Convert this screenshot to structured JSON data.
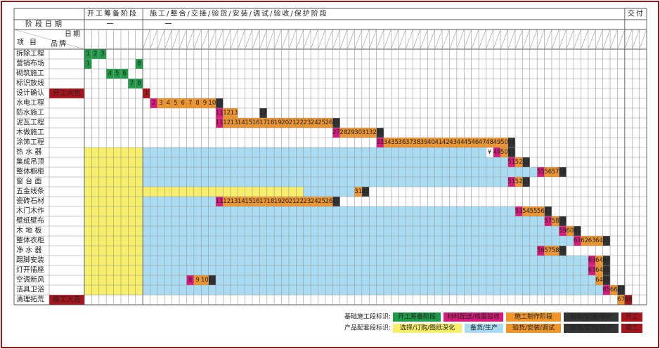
{
  "header": {
    "stage1": "开工筹备阶段",
    "stage2": "施工/整合/交接/验货/安装/调试/验收/保护阶段",
    "stage3": "交付",
    "date_row_label": "阶段日期",
    "stage1_date": "一",
    "stage2_date": "一",
    "corner_date": "日期",
    "corner_item": "项目",
    "corner_brand": "品牌"
  },
  "rows": [
    {
      "item": "拆除工程",
      "cells": [
        {
          "label": "1",
          "color": "#1e9a48"
        },
        {
          "label": "2",
          "color": "#1e9a48"
        },
        {
          "label": "3",
          "color": "#1e9a48"
        }
      ]
    },
    {
      "item": "营销布场",
      "cells": [
        {
          "label": "1",
          "color": "#1e9a48"
        },
        {
          "label": "8",
          "color": "#1e9a48"
        }
      ]
    },
    {
      "item": "砌筑施工",
      "cells": [
        {
          "label": "4",
          "color": "#1e9a48"
        },
        {
          "label": "5",
          "color": "#1e9a48"
        },
        {
          "label": "6",
          "color": "#1e9a48"
        }
      ]
    },
    {
      "item": "标识放线",
      "cells": [
        {
          "label": "7",
          "color": "#1e9a48"
        },
        {
          "label": "8",
          "color": "#1e9a48"
        }
      ]
    },
    {
      "item": "设计确认",
      "brand": "开工大吉",
      "cells": [
        {
          "label": "1",
          "color": "#a8141c"
        }
      ]
    },
    {
      "item": "水电工程",
      "cells": [
        {
          "label": "2",
          "color": "#d81b7a"
        },
        {
          "label": "3",
          "color": "#f0952a"
        },
        {
          "label": "4",
          "color": "#f0952a"
        },
        {
          "label": "5",
          "color": "#f0952a"
        },
        {
          "label": "6",
          "color": "#f0952a"
        },
        {
          "label": "7",
          "color": "#f0952a"
        },
        {
          "label": "8",
          "color": "#f0952a"
        },
        {
          "label": "9",
          "color": "#f0952a"
        },
        {
          "label": "10",
          "color": "#f0952a"
        },
        {
          "label": "11",
          "color": "#333333"
        }
      ]
    },
    {
      "item": "防水施工",
      "cells": [
        {
          "label": "11",
          "color": "#d81b7a"
        },
        {
          "label": "12",
          "color": "#f0952a"
        },
        {
          "label": "13",
          "color": "#f0952a"
        },
        {
          "label": "17",
          "color": "#333333"
        }
      ]
    },
    {
      "item": "泥瓦工程",
      "cells": [
        {
          "label": "11",
          "color": "#d81b7a"
        },
        {
          "label": "12",
          "color": "#f0952a"
        },
        {
          "label": "13",
          "color": "#f0952a"
        },
        {
          "label": "14",
          "color": "#f0952a"
        },
        {
          "label": "15",
          "color": "#f0952a"
        },
        {
          "label": "16",
          "color": "#f0952a"
        },
        {
          "label": "17",
          "color": "#f0952a"
        },
        {
          "label": "18",
          "color": "#f0952a"
        },
        {
          "label": "19",
          "color": "#f0952a"
        },
        {
          "label": "20",
          "color": "#f0952a"
        },
        {
          "label": "21",
          "color": "#f0952a"
        },
        {
          "label": "22",
          "color": "#f0952a"
        },
        {
          "label": "23",
          "color": "#f0952a"
        },
        {
          "label": "24",
          "color": "#f0952a"
        },
        {
          "label": "25",
          "color": "#f0952a"
        },
        {
          "label": "26",
          "color": "#f0952a"
        },
        {
          "label": "27",
          "color": "#333333"
        }
      ]
    },
    {
      "item": "木做施工",
      "cells": [
        {
          "label": "27",
          "color": "#d81b7a"
        },
        {
          "label": "28",
          "color": "#f0952a"
        },
        {
          "label": "29",
          "color": "#f0952a"
        },
        {
          "label": "30",
          "color": "#f0952a"
        },
        {
          "label": "31",
          "color": "#f0952a"
        },
        {
          "label": "32",
          "color": "#f0952a"
        },
        {
          "label": "33",
          "color": "#333333"
        }
      ]
    },
    {
      "item": "涂饰工程",
      "cells": [
        {
          "label": "33",
          "color": "#d81b7a"
        },
        {
          "label": "34",
          "color": "#f0952a"
        },
        {
          "label": "35",
          "color": "#f0952a"
        },
        {
          "label": "36",
          "color": "#f0952a"
        },
        {
          "label": "37",
          "color": "#f0952a"
        },
        {
          "label": "38",
          "color": "#f0952a"
        },
        {
          "label": "39",
          "color": "#f0952a"
        },
        {
          "label": "40",
          "color": "#f0952a"
        },
        {
          "label": "41",
          "color": "#f0952a"
        },
        {
          "label": "42",
          "color": "#f0952a"
        },
        {
          "label": "43",
          "color": "#f0952a"
        },
        {
          "label": "44",
          "color": "#f0952a"
        },
        {
          "label": "45",
          "color": "#f0952a"
        },
        {
          "label": "46",
          "color": "#f0952a"
        },
        {
          "label": "47",
          "color": "#f0952a"
        },
        {
          "label": "48",
          "color": "#f0952a"
        },
        {
          "label": "49",
          "color": "#f0952a"
        },
        {
          "label": "50",
          "color": "#f0952a"
        },
        {
          "label": "51",
          "color": "#333333"
        }
      ]
    },
    {
      "item": "热 水 器",
      "cells": [
        {
          "label": "¥"
        },
        {
          "label": "49",
          "color": "#d81b7a"
        },
        {
          "label": "50",
          "color": "#f0952a"
        },
        {
          "label": "51",
          "color": "#333333"
        }
      ]
    },
    {
      "item": "集成吊顶",
      "cells": [
        {
          "label": "51",
          "color": "#d81b7a"
        },
        {
          "label": "52",
          "color": "#f0952a"
        },
        {
          "label": "53",
          "color": "#333333"
        }
      ]
    },
    {
      "item": "整体橱柜",
      "cells": [
        {
          "label": "55",
          "color": "#d81b7a"
        },
        {
          "label": "56",
          "color": "#f0952a"
        },
        {
          "label": "57",
          "color": "#f0952a"
        },
        {
          "label": "58",
          "color": "#333333"
        }
      ]
    },
    {
      "item": "窗 台 面",
      "cells": [
        {
          "label": "51",
          "color": "#d81b7a"
        },
        {
          "label": "52",
          "color": "#f0952a"
        },
        {
          "label": "53",
          "color": "#333333"
        }
      ]
    },
    {
      "item": "五金线条",
      "cells": [
        {
          "label": "31",
          "color": "#f0952a"
        },
        {
          "label": "32",
          "color": "#333333"
        }
      ]
    },
    {
      "item": "瓷砖石材",
      "cells": [
        {
          "label": "11",
          "color": "#d81b7a"
        },
        {
          "label": "12",
          "color": "#f0952a"
        },
        {
          "label": "13",
          "color": "#f0952a"
        },
        {
          "label": "14",
          "color": "#f0952a"
        },
        {
          "label": "15",
          "color": "#f0952a"
        },
        {
          "label": "16",
          "color": "#f0952a"
        },
        {
          "label": "17",
          "color": "#f0952a"
        },
        {
          "label": "18",
          "color": "#f0952a"
        },
        {
          "label": "19",
          "color": "#f0952a"
        },
        {
          "label": "20",
          "color": "#f0952a"
        },
        {
          "label": "21",
          "color": "#f0952a"
        },
        {
          "label": "22",
          "color": "#f0952a"
        },
        {
          "label": "23",
          "color": "#f0952a"
        },
        {
          "label": "24",
          "color": "#f0952a"
        },
        {
          "label": "25",
          "color": "#f0952a"
        },
        {
          "label": "26",
          "color": "#f0952a"
        },
        {
          "label": "27",
          "color": "#333333"
        }
      ]
    },
    {
      "item": "木门木作",
      "cells": [
        {
          "label": "53",
          "color": "#d81b7a"
        },
        {
          "label": "54",
          "color": "#f0952a"
        },
        {
          "label": "55",
          "color": "#f0952a"
        },
        {
          "label": "56",
          "color": "#f0952a"
        },
        {
          "label": "57",
          "color": "#333333"
        }
      ]
    },
    {
      "item": "壁纸壁布",
      "cells": [
        {
          "label": "57",
          "color": "#d81b7a"
        },
        {
          "label": "58",
          "color": "#f0952a"
        },
        {
          "label": "59",
          "color": "#333333"
        }
      ]
    },
    {
      "item": "木 地 板",
      "cells": [
        {
          "label": "59",
          "color": "#d81b7a"
        },
        {
          "label": "60",
          "color": "#f0952a"
        },
        {
          "label": "61",
          "color": "#333333"
        }
      ]
    },
    {
      "item": "整体衣柜",
      "cells": [
        {
          "label": "61",
          "color": "#d81b7a"
        },
        {
          "label": "62",
          "color": "#f0952a"
        },
        {
          "label": "63",
          "color": "#f0952a"
        },
        {
          "label": "64",
          "color": "#f0952a"
        },
        {
          "label": "65",
          "color": "#333333"
        }
      ]
    },
    {
      "item": "净 水 器",
      "cells": [
        {
          "label": "56",
          "color": "#d81b7a"
        },
        {
          "label": "57",
          "color": "#f0952a"
        },
        {
          "label": "58",
          "color": "#f0952a"
        },
        {
          "label": "59",
          "color": "#333333"
        }
      ]
    },
    {
      "item": "踢脚安装",
      "cells": [
        {
          "label": "63",
          "color": "#d81b7a"
        },
        {
          "label": "64",
          "color": "#f0952a"
        },
        {
          "label": "65",
          "color": "#333333"
        }
      ]
    },
    {
      "item": "灯开插座",
      "cells": [
        {
          "label": "63",
          "color": "#d81b7a"
        },
        {
          "label": "64",
          "color": "#f0952a"
        },
        {
          "label": "65",
          "color": "#333333"
        }
      ]
    },
    {
      "item": "空调新风",
      "cells": [
        {
          "label": "8",
          "color": "#d81b7a"
        },
        {
          "label": "9",
          "color": "#f0952a"
        },
        {
          "label": "10",
          "color": "#f0952a"
        },
        {
          "label": "11",
          "color": "#333333"
        },
        {
          "label": "64",
          "color": "#f0952a"
        },
        {
          "label": "65",
          "color": "#333333"
        }
      ]
    },
    {
      "item": "洁具卫浴",
      "cells": [
        {
          "label": "65",
          "color": "#d81b7a"
        },
        {
          "label": "66",
          "color": "#f0952a"
        },
        {
          "label": "67",
          "color": "#333333"
        }
      ]
    },
    {
      "item": "清理拓荒",
      "brand": "竣工大吉",
      "cells": [
        {
          "label": "67",
          "color": "#f0952a"
        },
        {
          "label": "68",
          "color": "#a8141c"
        }
      ]
    }
  ],
  "legend": {
    "basic": {
      "label": "基础施工段标识:",
      "items": [
        {
          "text": "开工筹备阶段",
          "color": "#1e9a48"
        },
        {
          "text": "材料配送/核量验收",
          "color": "#d81b7a"
        },
        {
          "text": "施工制作阶段",
          "color": "#f0952a"
        },
        {
          "text": "验收/交接/保护",
          "color": "#333333"
        },
        {
          "text": "开工",
          "color": "#a8141c"
        }
      ]
    },
    "product": {
      "label": "产品配套段标识:",
      "items": [
        {
          "text": "选择/订购/图纸深化",
          "color": "#f7ef6a"
        },
        {
          "text": "备货/生产",
          "color": "#a9dcf2"
        },
        {
          "text": "验货/安装/调试",
          "color": "#f0952a"
        },
        {
          "text": "验收/交付/保护",
          "color": "#333333"
        },
        {
          "text": "竣工",
          "color": "#a8141c"
        }
      ]
    }
  }
}
